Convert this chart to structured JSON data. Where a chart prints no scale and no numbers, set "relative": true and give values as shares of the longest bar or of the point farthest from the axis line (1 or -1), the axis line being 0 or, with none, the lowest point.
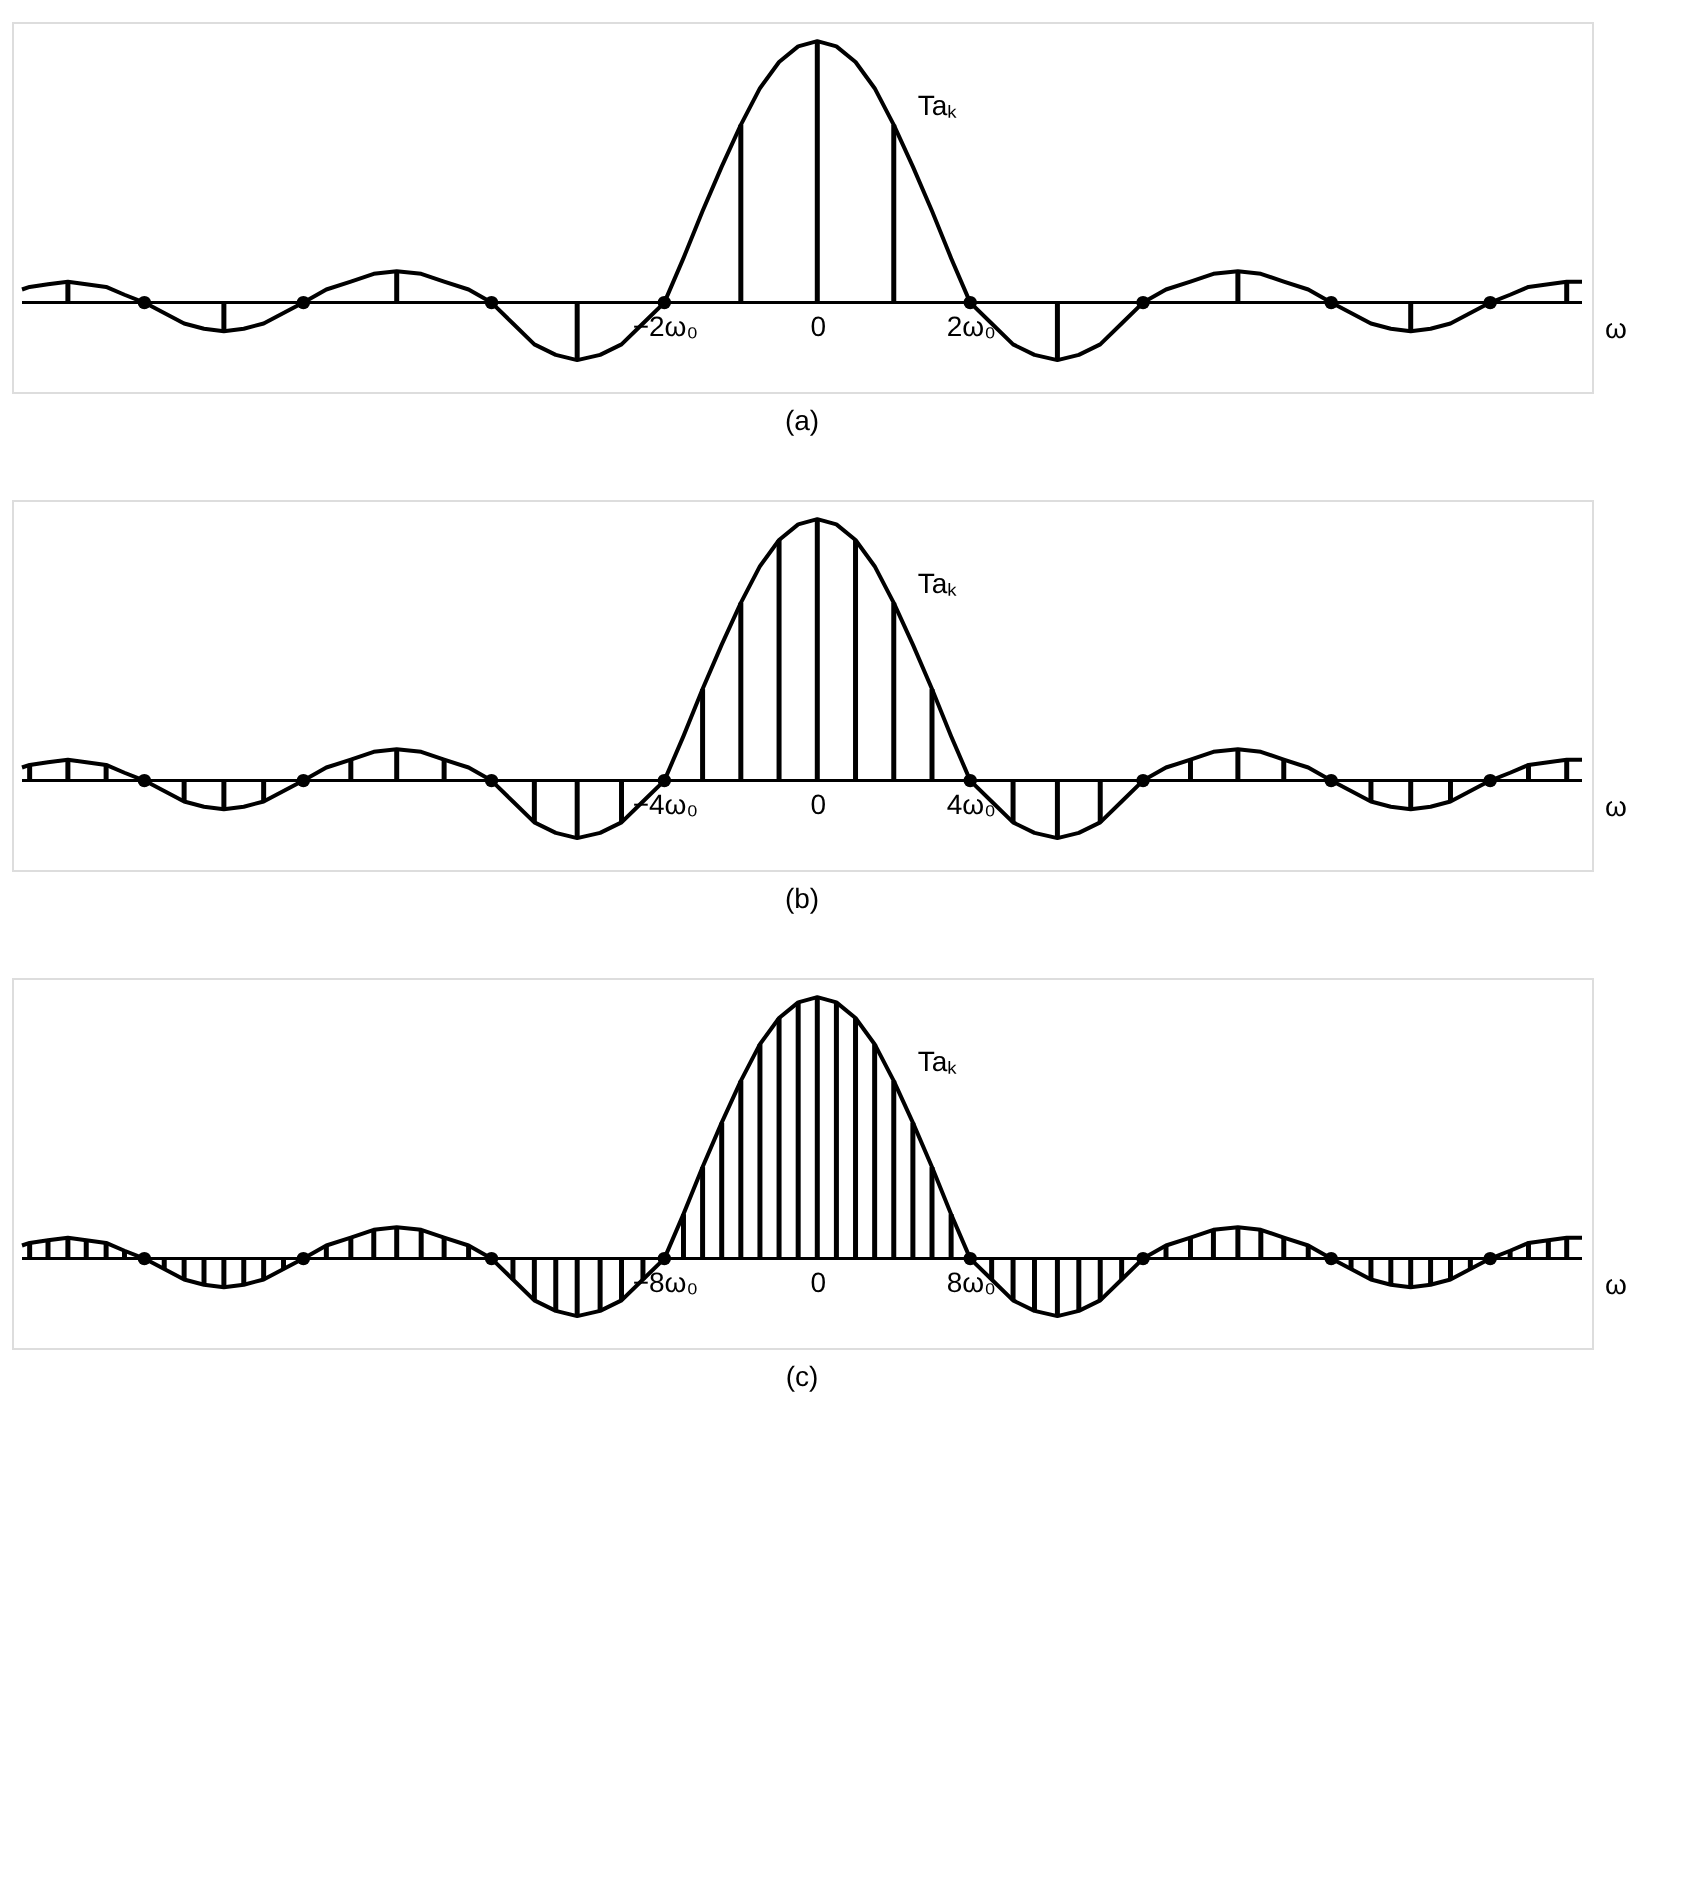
{
  "chart_data": [
    {
      "type": "bar",
      "title": "(a)",
      "xlabel": "ω",
      "relative": true,
      "xlim": [
        -10.4,
        10
      ],
      "tick_labels": "x",
      "xticks": [
        {
          "value": -2,
          "label": "−2ω₀"
        },
        0,
        {
          "value": 2,
          "label": "2ω₀"
        }
      ],
      "series": [
        {
          "type": "line",
          "name": "Taₖ",
          "color": "#000000",
          "x": [
            -10.4,
            -10.3,
            -10.06,
            -9.8,
            -9.56,
            -9.3,
            -9.06,
            -8.8,
            -8.54,
            -8.28,
            -8.02,
            -7.76,
            -7.5,
            -7.24,
            -6.98,
            -6.72,
            -6.42,
            -6.1,
            -5.8,
            -5.5,
            -5.18,
            -4.88,
            -4.56,
            -4.26,
            -3.98,
            -3.7,
            -3.42,
            -3.14,
            -2.84,
            -2.56,
            -2.28,
            -2,
            -1.75,
            -1.5,
            -1.25,
            -1,
            -0.75,
            -0.5,
            -0.25,
            0,
            0.25,
            0.5,
            0.75,
            1,
            1.25,
            1.5,
            1.75,
            2,
            2.28,
            2.56,
            2.84,
            3.14,
            3.42,
            3.7,
            3.98,
            4.26,
            4.56,
            4.88,
            5.18,
            5.5,
            5.8,
            6.1,
            6.42,
            6.72,
            6.98,
            7.24,
            7.5,
            7.76,
            8.02,
            8.28,
            8.54,
            8.8,
            9.06,
            9.3,
            9.56,
            9.8,
            10
          ],
          "values": [
            0.05,
            0.06,
            0.07,
            0.08,
            0.07,
            0.06,
            0.03,
            0,
            -0.04,
            -0.08,
            -0.1,
            -0.11,
            -0.1,
            -0.08,
            -0.04,
            0,
            0.05,
            0.08,
            0.11,
            0.12,
            0.11,
            0.08,
            0.05,
            0,
            -0.08,
            -0.16,
            -0.2,
            -0.22,
            -0.2,
            -0.16,
            -0.08,
            0,
            0.17,
            0.35,
            0.52,
            0.68,
            0.82,
            0.92,
            0.98,
            1,
            0.98,
            0.92,
            0.82,
            0.68,
            0.52,
            0.35,
            0.17,
            0,
            -0.08,
            -0.16,
            -0.2,
            -0.22,
            -0.2,
            -0.16,
            -0.08,
            0,
            0.05,
            0.08,
            0.11,
            0.12,
            0.11,
            0.08,
            0.05,
            0,
            -0.04,
            -0.08,
            -0.1,
            -0.11,
            -0.1,
            -0.08,
            -0.04,
            0,
            0.03,
            0.06,
            0.07,
            0.08,
            0.08
          ]
        },
        {
          "color": "#000000",
          "x": [
            -9.8,
            -7.76,
            -5.5,
            -3.14,
            -1,
            0,
            1,
            3.14,
            5.5,
            7.76,
            9.8
          ],
          "values": [
            0.08,
            -0.11,
            0.12,
            -0.22,
            0.68,
            1,
            0.68,
            -0.22,
            0.12,
            -0.11,
            0.08
          ]
        },
        {
          "type": "scatter",
          "marker": "circle",
          "color": "#000000",
          "x": [
            -8.8,
            -6.72,
            -4.26,
            -2,
            2,
            4.26,
            6.72,
            8.8
          ],
          "values": [
            0,
            0,
            0,
            0,
            0,
            0,
            0,
            0
          ]
        }
      ]
    },
    {
      "type": "bar",
      "title": "(b)",
      "xlabel": "ω",
      "relative": true,
      "xlim": [
        -20.8,
        20
      ],
      "tick_labels": "x",
      "xticks": [
        {
          "value": -4,
          "label": "−4ω₀"
        },
        0,
        {
          "value": 4,
          "label": "4ω₀"
        }
      ],
      "series": [
        {
          "type": "line",
          "name": "Taₖ",
          "color": "#000000",
          "x": [
            -20.8,
            -20.6,
            -20.12,
            -19.6,
            -19.12,
            -18.6,
            -18.12,
            -17.6,
            -17.08,
            -16.56,
            -16.04,
            -15.52,
            -15,
            -14.48,
            -13.96,
            -13.44,
            -12.84,
            -12.2,
            -11.6,
            -11,
            -10.36,
            -9.76,
            -9.12,
            -8.52,
            -7.96,
            -7.4,
            -6.84,
            -6.28,
            -5.68,
            -5.12,
            -4.56,
            -4,
            -3.5,
            -3,
            -2.5,
            -2,
            -1.5,
            -1,
            -0.5,
            0,
            0.5,
            1,
            1.5,
            2,
            2.5,
            3,
            3.5,
            4,
            4.56,
            5.12,
            5.68,
            6.28,
            6.84,
            7.4,
            7.96,
            8.52,
            9.12,
            9.76,
            10.36,
            11,
            11.6,
            12.2,
            12.84,
            13.44,
            13.96,
            14.48,
            15,
            15.52,
            16.04,
            16.56,
            17.08,
            17.6,
            18.12,
            18.6,
            19.12,
            19.6,
            20
          ],
          "values": [
            0.05,
            0.06,
            0.07,
            0.08,
            0.07,
            0.06,
            0.03,
            0,
            -0.04,
            -0.08,
            -0.1,
            -0.11,
            -0.1,
            -0.08,
            -0.04,
            0,
            0.05,
            0.08,
            0.11,
            0.12,
            0.11,
            0.08,
            0.05,
            0,
            -0.08,
            -0.16,
            -0.2,
            -0.22,
            -0.2,
            -0.16,
            -0.08,
            0,
            0.17,
            0.35,
            0.52,
            0.68,
            0.82,
            0.92,
            0.98,
            1,
            0.98,
            0.92,
            0.82,
            0.68,
            0.52,
            0.35,
            0.17,
            0,
            -0.08,
            -0.16,
            -0.2,
            -0.22,
            -0.2,
            -0.16,
            -0.08,
            0,
            0.05,
            0.08,
            0.11,
            0.12,
            0.11,
            0.08,
            0.05,
            0,
            -0.04,
            -0.08,
            -0.1,
            -0.11,
            -0.1,
            -0.08,
            -0.04,
            0,
            0.03,
            0.06,
            0.07,
            0.08,
            0.08
          ]
        },
        {
          "color": "#000000",
          "x": [
            -20.6,
            -19.6,
            -18.6,
            -16.56,
            -15.52,
            -14.48,
            -12.2,
            -11,
            -9.76,
            -7.4,
            -6.28,
            -5.12,
            -3,
            -2,
            -1,
            0,
            1,
            2,
            3,
            5.12,
            6.28,
            7.4,
            9.76,
            11,
            12.2,
            14.48,
            15.52,
            16.56,
            18.6,
            19.6
          ],
          "values": [
            0.06,
            0.08,
            0.06,
            -0.08,
            -0.11,
            -0.08,
            0.08,
            0.12,
            0.08,
            -0.16,
            -0.22,
            -0.16,
            0.35,
            0.68,
            0.92,
            1,
            0.92,
            0.68,
            0.35,
            -0.16,
            -0.22,
            -0.16,
            0.08,
            0.12,
            0.08,
            -0.08,
            -0.11,
            -0.08,
            0.06,
            0.08
          ]
        },
        {
          "type": "scatter",
          "marker": "circle",
          "color": "#000000",
          "x": [
            -17.6,
            -13.44,
            -8.52,
            -4,
            4,
            8.52,
            13.44,
            17.6
          ],
          "values": [
            0,
            0,
            0,
            0,
            0,
            0,
            0,
            0
          ]
        }
      ]
    },
    {
      "type": "bar",
      "title": "(c)",
      "xlabel": "ω",
      "relative": true,
      "xlim": [
        -41.6,
        40
      ],
      "tick_labels": "x",
      "xticks": [
        {
          "value": -8,
          "label": "−8ω₀"
        },
        0,
        {
          "value": 8,
          "label": "8ω₀"
        }
      ],
      "series": [
        {
          "type": "line",
          "name": "Taₖ",
          "color": "#000000",
          "x": [
            -41.6,
            -41.2,
            -40.24,
            -39.2,
            -38.24,
            -37.2,
            -36.24,
            -35.2,
            -34.16,
            -33.12,
            -32.08,
            -31.04,
            -30,
            -28.96,
            -27.92,
            -26.88,
            -25.68,
            -24.4,
            -23.2,
            -22,
            -20.72,
            -19.52,
            -18.24,
            -17.04,
            -15.92,
            -14.8,
            -13.68,
            -12.56,
            -11.36,
            -10.24,
            -9.12,
            -8,
            -7,
            -6,
            -5,
            -4,
            -3,
            -2,
            -1,
            0,
            1,
            2,
            3,
            4,
            5,
            6,
            7,
            8,
            9.12,
            10.24,
            11.36,
            12.56,
            13.68,
            14.8,
            15.92,
            17.04,
            18.24,
            19.52,
            20.72,
            22,
            23.2,
            24.4,
            25.68,
            26.88,
            27.92,
            28.96,
            30,
            31.04,
            32.08,
            33.12,
            34.16,
            35.2,
            36.24,
            37.2,
            38.24,
            39.2,
            40
          ],
          "values": [
            0.05,
            0.06,
            0.07,
            0.08,
            0.07,
            0.06,
            0.03,
            0,
            -0.04,
            -0.08,
            -0.1,
            -0.11,
            -0.1,
            -0.08,
            -0.04,
            0,
            0.05,
            0.08,
            0.11,
            0.12,
            0.11,
            0.08,
            0.05,
            0,
            -0.08,
            -0.16,
            -0.2,
            -0.22,
            -0.2,
            -0.16,
            -0.08,
            0,
            0.17,
            0.35,
            0.52,
            0.68,
            0.82,
            0.92,
            0.98,
            1,
            0.98,
            0.92,
            0.82,
            0.68,
            0.52,
            0.35,
            0.17,
            0,
            -0.08,
            -0.16,
            -0.2,
            -0.22,
            -0.2,
            -0.16,
            -0.08,
            0,
            0.05,
            0.08,
            0.11,
            0.12,
            0.11,
            0.08,
            0.05,
            0,
            -0.04,
            -0.08,
            -0.1,
            -0.11,
            -0.1,
            -0.08,
            -0.04,
            0,
            0.03,
            0.06,
            0.07,
            0.08,
            0.08
          ]
        },
        {
          "color": "#000000",
          "x": [
            -41.2,
            -40.24,
            -39.2,
            -38.24,
            -37.2,
            -36.24,
            -34.16,
            -33.12,
            -32.08,
            -31.04,
            -30,
            -28.96,
            -27.92,
            -25.68,
            -24.4,
            -23.2,
            -22,
            -20.72,
            -19.52,
            -18.24,
            -15.92,
            -14.8,
            -13.68,
            -12.56,
            -11.36,
            -10.24,
            -9.12,
            -7,
            -6,
            -5,
            -4,
            -3,
            -2,
            -1,
            0,
            1,
            2,
            3,
            4,
            5,
            6,
            7,
            9.12,
            10.24,
            11.36,
            12.56,
            13.68,
            14.8,
            15.92,
            18.24,
            19.52,
            20.72,
            22,
            23.2,
            24.4,
            25.68,
            27.92,
            28.96,
            30,
            31.04,
            32.08,
            33.12,
            34.16,
            36.24,
            37.2,
            38.24,
            39.2
          ],
          "values": [
            0.06,
            0.07,
            0.08,
            0.07,
            0.06,
            0.03,
            -0.04,
            -0.08,
            -0.1,
            -0.11,
            -0.1,
            -0.08,
            -0.04,
            0.05,
            0.08,
            0.11,
            0.12,
            0.11,
            0.08,
            0.05,
            -0.08,
            -0.16,
            -0.2,
            -0.22,
            -0.2,
            -0.16,
            -0.08,
            0.17,
            0.35,
            0.52,
            0.68,
            0.82,
            0.92,
            0.98,
            1,
            0.98,
            0.92,
            0.82,
            0.68,
            0.52,
            0.35,
            0.17,
            -0.08,
            -0.16,
            -0.2,
            -0.22,
            -0.2,
            -0.16,
            -0.08,
            0.05,
            0.08,
            0.11,
            0.12,
            0.11,
            0.08,
            0.05,
            -0.04,
            -0.08,
            -0.1,
            -0.11,
            -0.1,
            -0.08,
            -0.04,
            0.03,
            0.06,
            0.07,
            0.08
          ]
        },
        {
          "type": "scatter",
          "marker": "circle",
          "color": "#000000",
          "x": [
            -35.2,
            -26.88,
            -17.04,
            -8,
            8,
            17.04,
            26.88,
            35.2
          ],
          "values": [
            0,
            0,
            0,
            0,
            0,
            0,
            0,
            0
          ]
        }
      ]
    }
  ]
}
